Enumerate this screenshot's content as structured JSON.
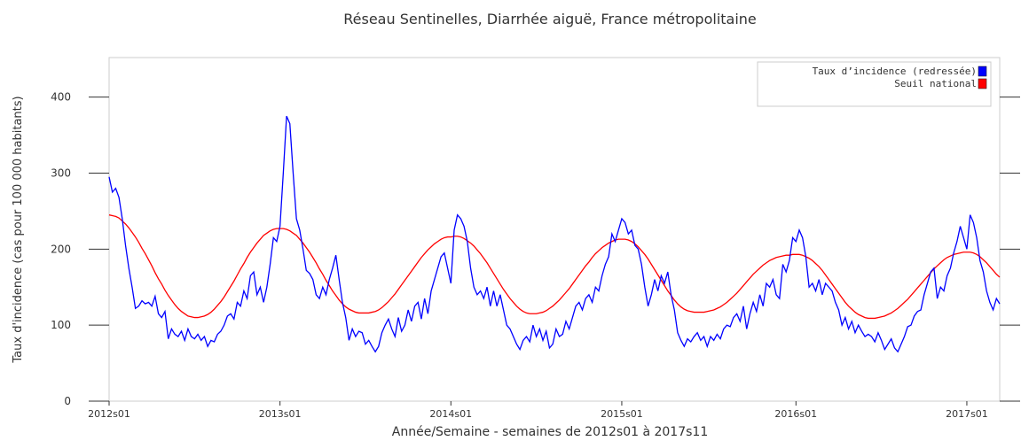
{
  "chart_data": {
    "type": "line",
    "title": "Réseau Sentinelles, Diarrhée aiguë, France métropolitaine",
    "x_label": "Année/Semaine - semaines de 2012s01 à 2017s11",
    "y_label": "Taux d'incidence (cas pour 100 000 habitants)",
    "categories": [
      "2012s01",
      null,
      null,
      null,
      null,
      null,
      null,
      null,
      null,
      null,
      null,
      null,
      null,
      null,
      null,
      null,
      null,
      null,
      null,
      null,
      null,
      null,
      null,
      null,
      null,
      null,
      null,
      null,
      null,
      null,
      null,
      null,
      null,
      null,
      null,
      null,
      null,
      null,
      null,
      null,
      null,
      null,
      null,
      null,
      null,
      null,
      null,
      null,
      null,
      null,
      null,
      null,
      "2013s01",
      null,
      null,
      null,
      null,
      null,
      null,
      null,
      null,
      null,
      null,
      null,
      null,
      null,
      null,
      null,
      null,
      null,
      null,
      null,
      null,
      null,
      null,
      null,
      null,
      null,
      null,
      null,
      null,
      null,
      null,
      null,
      null,
      null,
      null,
      null,
      null,
      null,
      null,
      null,
      null,
      null,
      null,
      null,
      null,
      null,
      null,
      null,
      null,
      null,
      null,
      null,
      "2014s01",
      null,
      null,
      null,
      null,
      null,
      null,
      null,
      null,
      null,
      null,
      null,
      null,
      null,
      null,
      null,
      null,
      null,
      null,
      null,
      null,
      null,
      null,
      null,
      null,
      null,
      null,
      null,
      null,
      null,
      null,
      null,
      null,
      null,
      null,
      null,
      null,
      null,
      null,
      null,
      null,
      null,
      null,
      null,
      null,
      null,
      null,
      null,
      null,
      null,
      null,
      null,
      "2015s01",
      null,
      null,
      null,
      null,
      null,
      null,
      null,
      null,
      null,
      null,
      null,
      null,
      null,
      null,
      null,
      null,
      null,
      null,
      null,
      null,
      null,
      null,
      null,
      null,
      null,
      null,
      null,
      null,
      null,
      null,
      null,
      null,
      null,
      null,
      null,
      null,
      null,
      null,
      null,
      null,
      null,
      null,
      null,
      null,
      null,
      null,
      null,
      null,
      null,
      null,
      null,
      null,
      "2016s01",
      null,
      null,
      null,
      null,
      null,
      null,
      null,
      null,
      null,
      null,
      null,
      null,
      null,
      null,
      null,
      null,
      null,
      null,
      null,
      null,
      null,
      null,
      null,
      null,
      null,
      null,
      null,
      null,
      null,
      null,
      null,
      null,
      null,
      null,
      null,
      null,
      null,
      null,
      null,
      null,
      null,
      null,
      null,
      null,
      null,
      null,
      null,
      null,
      null,
      null,
      null,
      "2017s01",
      null,
      null,
      null,
      null,
      null,
      null,
      null,
      null,
      null,
      null
    ],
    "series": [
      {
        "name": "Taux d’incidence (redressée)",
        "color": "#0000ff",
        "values": [
          295,
          275,
          280,
          268,
          240,
          205,
          175,
          150,
          122,
          125,
          132,
          128,
          130,
          125,
          138,
          115,
          110,
          118,
          82,
          95,
          88,
          85,
          92,
          80,
          95,
          85,
          82,
          88,
          80,
          85,
          72,
          80,
          78,
          88,
          92,
          100,
          112,
          115,
          108,
          130,
          125,
          145,
          135,
          165,
          170,
          140,
          150,
          130,
          150,
          180,
          215,
          210,
          230,
          300,
          375,
          365,
          300,
          240,
          225,
          200,
          172,
          168,
          160,
          140,
          135,
          150,
          140,
          160,
          175,
          192,
          160,
          130,
          110,
          80,
          95,
          85,
          92,
          90,
          75,
          80,
          72,
          65,
          72,
          90,
          100,
          108,
          95,
          85,
          110,
          92,
          100,
          120,
          105,
          125,
          130,
          108,
          135,
          115,
          145,
          160,
          175,
          190,
          195,
          175,
          155,
          225,
          245,
          240,
          230,
          210,
          175,
          150,
          140,
          145,
          135,
          150,
          125,
          145,
          125,
          140,
          120,
          100,
          95,
          85,
          75,
          68,
          80,
          85,
          78,
          100,
          85,
          95,
          80,
          92,
          70,
          75,
          95,
          85,
          88,
          105,
          95,
          110,
          125,
          130,
          120,
          135,
          140,
          130,
          150,
          145,
          165,
          180,
          190,
          220,
          210,
          225,
          240,
          235,
          220,
          225,
          205,
          200,
          180,
          150,
          125,
          140,
          160,
          145,
          165,
          155,
          170,
          140,
          120,
          90,
          80,
          72,
          82,
          78,
          85,
          90,
          80,
          85,
          72,
          85,
          80,
          88,
          82,
          95,
          100,
          98,
          110,
          115,
          105,
          125,
          95,
          115,
          130,
          118,
          140,
          125,
          155,
          150,
          160,
          140,
          135,
          180,
          170,
          185,
          215,
          210,
          225,
          215,
          190,
          150,
          155,
          145,
          160,
          140,
          155,
          150,
          145,
          130,
          120,
          100,
          110,
          95,
          105,
          90,
          100,
          92,
          85,
          88,
          85,
          78,
          90,
          80,
          68,
          75,
          82,
          70,
          65,
          75,
          85,
          98,
          100,
          112,
          118,
          120,
          140,
          155,
          170,
          175,
          135,
          150,
          145,
          165,
          175,
          195,
          210,
          230,
          215,
          200,
          245,
          235,
          215,
          185,
          170,
          145,
          130,
          120,
          135,
          128
        ]
      },
      {
        "name": "Seuil national",
        "color": "#ff0000",
        "values": [
          245,
          244,
          243,
          241,
          237,
          233,
          228,
          222,
          216,
          209,
          201,
          194,
          186,
          178,
          169,
          161,
          154,
          146,
          139,
          133,
          127,
          122,
          118,
          115,
          112,
          111,
          110,
          110,
          111,
          112,
          114,
          117,
          121,
          126,
          131,
          137,
          144,
          151,
          158,
          166,
          174,
          181,
          189,
          196,
          202,
          208,
          213,
          218,
          221,
          224,
          226,
          227,
          227,
          227,
          226,
          224,
          221,
          218,
          213,
          208,
          202,
          196,
          189,
          182,
          174,
          167,
          159,
          152,
          145,
          139,
          133,
          128,
          124,
          121,
          119,
          117,
          116,
          116,
          116,
          116,
          117,
          118,
          120,
          123,
          127,
          131,
          136,
          141,
          147,
          153,
          159,
          165,
          171,
          177,
          183,
          189,
          194,
          199,
          203,
          207,
          210,
          213,
          215,
          216,
          216,
          217,
          217,
          216,
          214,
          211,
          208,
          204,
          199,
          194,
          188,
          182,
          175,
          168,
          161,
          154,
          147,
          141,
          135,
          130,
          125,
          121,
          118,
          116,
          115,
          115,
          115,
          116,
          117,
          119,
          122,
          125,
          129,
          133,
          138,
          143,
          148,
          154,
          160,
          166,
          172,
          178,
          183,
          189,
          194,
          198,
          202,
          205,
          208,
          210,
          212,
          213,
          213,
          213,
          212,
          210,
          207,
          203,
          198,
          193,
          187,
          180,
          173,
          166,
          159,
          152,
          145,
          139,
          133,
          128,
          124,
          121,
          119,
          118,
          117,
          117,
          117,
          117,
          118,
          119,
          120,
          122,
          124,
          127,
          130,
          134,
          138,
          142,
          147,
          152,
          157,
          162,
          167,
          171,
          175,
          179,
          182,
          185,
          187,
          189,
          190,
          191,
          192,
          192,
          193,
          193,
          193,
          192,
          190,
          188,
          185,
          181,
          177,
          172,
          166,
          160,
          154,
          148,
          142,
          136,
          130,
          125,
          121,
          117,
          114,
          112,
          110,
          109,
          109,
          109,
          110,
          111,
          112,
          114,
          116,
          119,
          122,
          126,
          130,
          134,
          139,
          144,
          149,
          154,
          159,
          164,
          169,
          174,
          178,
          182,
          186,
          189,
          191,
          193,
          194,
          195,
          196,
          196,
          196,
          195,
          193,
          190,
          186,
          182,
          177,
          172,
          167,
          163
        ]
      }
    ],
    "ylim": [
      0,
      452
    ],
    "yticks": [
      0,
      100,
      200,
      300,
      400
    ],
    "legend": "top-right"
  }
}
